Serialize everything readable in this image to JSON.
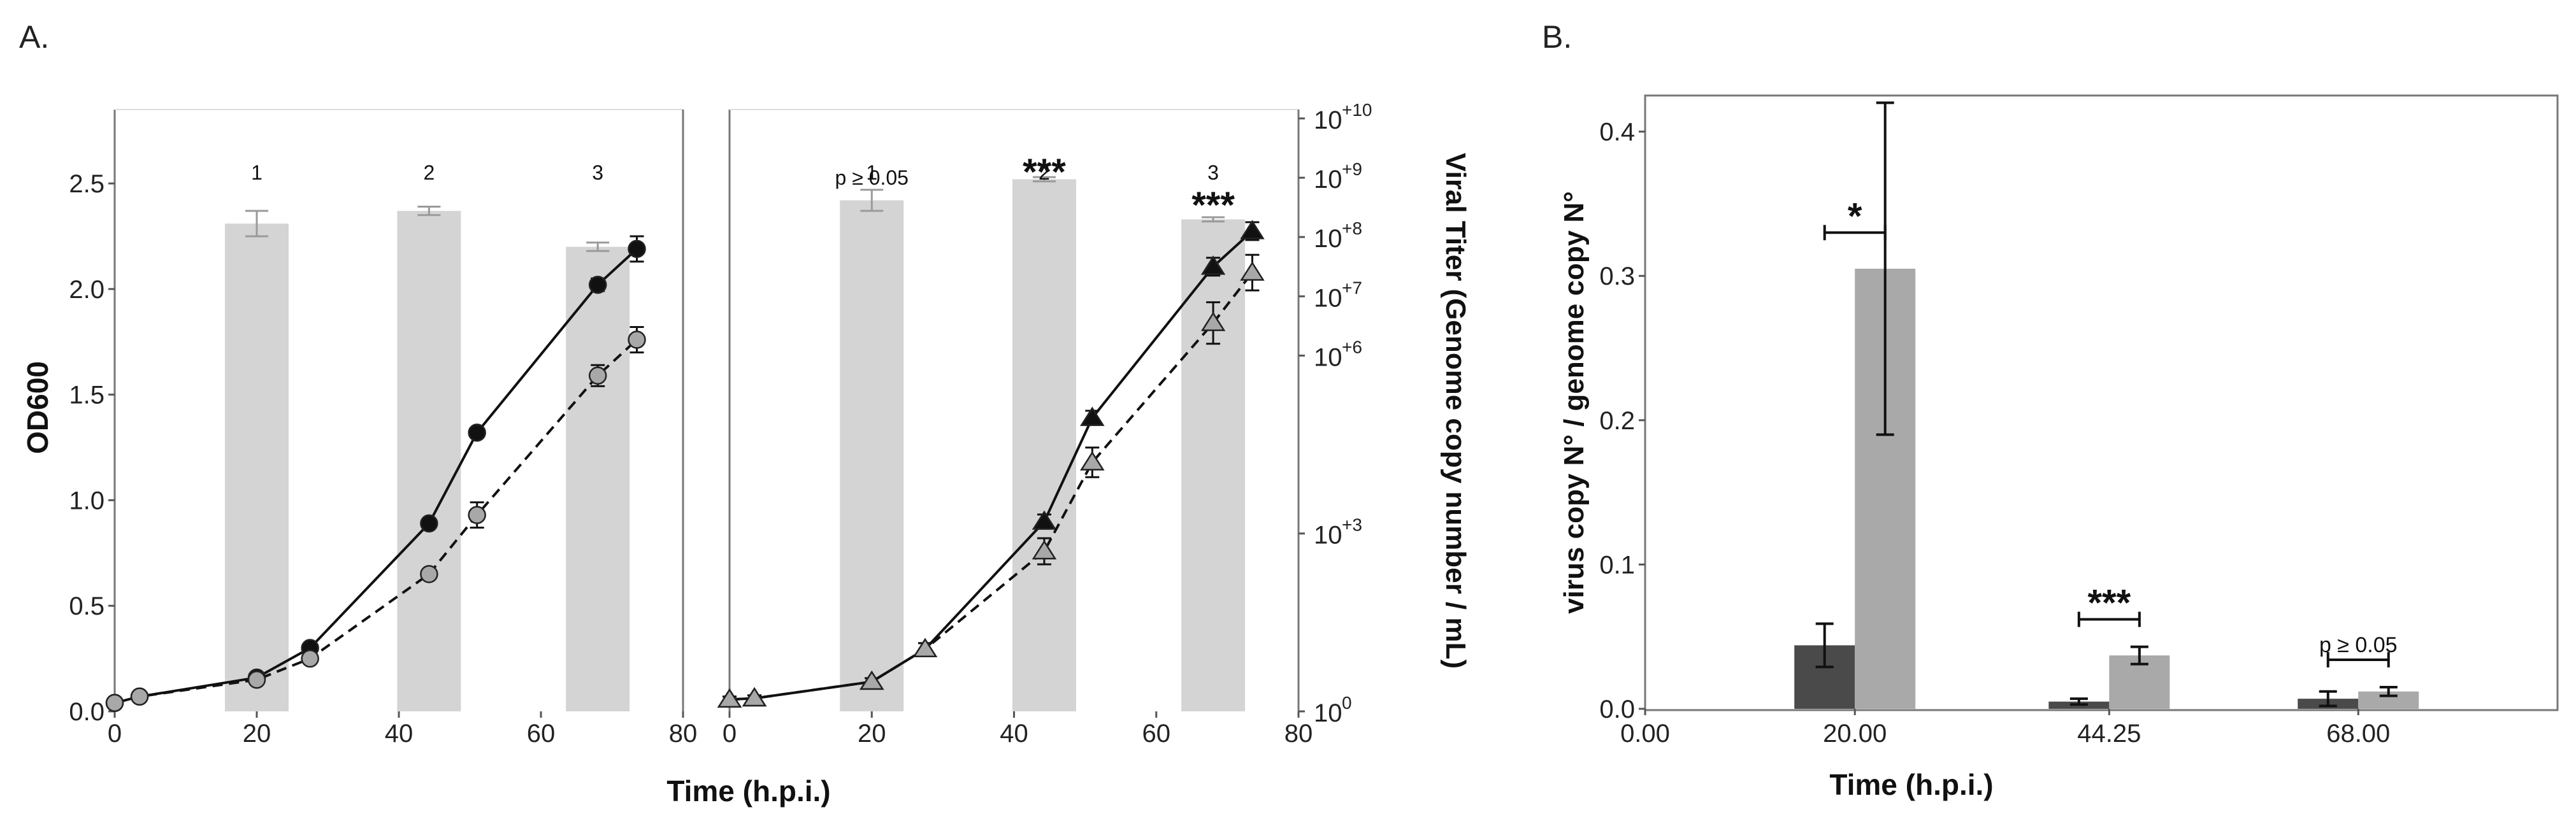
{
  "panels": {
    "a_label": "A.",
    "b_label": "B."
  },
  "colors": {
    "bar": "#d4d4d4",
    "bar_err": "#9a9a9a",
    "black": "#111111",
    "gray_marker": "#a8a8a8",
    "dark_bar": "#4a4a4a",
    "light_bar": "#a9a9a9"
  },
  "chart_data": [
    {
      "id": "A-left",
      "type": "line",
      "title": "",
      "xlabel": "Time (h.p.i.)",
      "ylabel": "OD600",
      "xlim": [
        0,
        80
      ],
      "ylim": [
        0,
        2.85
      ],
      "xticks": [
        "0",
        "20",
        "40",
        "60",
        "80"
      ],
      "yticks": [
        "0.0",
        "0.5",
        "1.0",
        "1.5",
        "2.0",
        "2.5"
      ],
      "bars": {
        "x": [
          20,
          44.25,
          68
        ],
        "values": [
          2.31,
          2.37,
          2.2
        ],
        "err": [
          0.06,
          0.02,
          0.02
        ],
        "labels": [
          "1",
          "2",
          "3"
        ],
        "sig": [
          "",
          "",
          ""
        ]
      },
      "series": [
        {
          "name": "solid",
          "marker": "circle",
          "style": "solid",
          "x": [
            0,
            3.5,
            20,
            27.5,
            44.25,
            51,
            68,
            73.5
          ],
          "y": [
            0.04,
            0.07,
            0.16,
            0.3,
            0.89,
            1.32,
            2.02,
            2.19
          ],
          "err": [
            0.01,
            0.01,
            0.01,
            0.02,
            0.02,
            0.02,
            0.03,
            0.06
          ]
        },
        {
          "name": "dashed",
          "marker": "circle",
          "style": "dashed",
          "x": [
            0,
            3.5,
            20,
            27.5,
            44.25,
            51,
            68,
            73.5
          ],
          "y": [
            0.04,
            0.07,
            0.15,
            0.25,
            0.65,
            0.93,
            1.59,
            1.76
          ],
          "err": [
            0.01,
            0.01,
            0.01,
            0.02,
            0.02,
            0.06,
            0.05,
            0.06
          ]
        }
      ]
    },
    {
      "id": "A-right",
      "type": "line",
      "title": "",
      "xlabel": "",
      "ylabel": "Viral Titer (Genome copy number / mL)",
      "xlim": [
        0,
        80
      ],
      "yscale": "log",
      "ylim_log10": [
        0,
        10.15
      ],
      "xticks": [
        "0",
        "20",
        "40",
        "60",
        "80"
      ],
      "yticks": [
        {
          "base": "10",
          "exp": "+10",
          "log": 10
        },
        {
          "base": "10",
          "exp": "+9",
          "log": 9
        },
        {
          "base": "10",
          "exp": "+8",
          "log": 8
        },
        {
          "base": "10",
          "exp": "+7",
          "log": 7
        },
        {
          "base": "10",
          "exp": "+6",
          "log": 6
        },
        {
          "base": "10",
          "exp": "+3",
          "log": 3
        },
        {
          "base": "10",
          "exp": "0",
          "log": 0
        }
      ],
      "bars": {
        "x": [
          20,
          44.25,
          68
        ],
        "values": [
          2.42,
          2.52,
          2.33
        ],
        "err": [
          0.05,
          0.01,
          0.01
        ],
        "labels": [
          "1",
          "2",
          "3"
        ],
        "sig": [
          "p ≥ 0.05",
          "***",
          "***"
        ]
      },
      "series": [
        {
          "name": "solid",
          "marker": "triangle",
          "style": "solid",
          "x": [
            0,
            3.5,
            20,
            27.5,
            44.25,
            51,
            68,
            73.5
          ],
          "log10_y": [
            0.2,
            0.22,
            0.5,
            1.05,
            3.2,
            4.95,
            7.5,
            8.1
          ],
          "err_log": [
            0.05,
            0.05,
            0.06,
            0.1,
            0.12,
            0.12,
            0.15,
            0.15
          ]
        },
        {
          "name": "dashed",
          "marker": "triangle",
          "style": "dashed",
          "x": [
            0,
            3.5,
            20,
            27.5,
            44.25,
            51,
            68,
            73.5
          ],
          "log10_y": [
            0.2,
            0.22,
            0.5,
            1.05,
            2.7,
            4.2,
            6.55,
            7.4
          ],
          "err_log": [
            0.05,
            0.05,
            0.06,
            0.1,
            0.22,
            0.25,
            0.35,
            0.3
          ]
        }
      ]
    },
    {
      "id": "B",
      "type": "bar",
      "title": "",
      "xlabel": "Time (h.p.i.)",
      "ylabel": "virus copy N° / genome copy N°",
      "xlim": [
        0,
        87
      ],
      "ylim": [
        0,
        0.425
      ],
      "xticks": [
        {
          "x": 0,
          "label": "0.00"
        },
        {
          "x": 20,
          "label": "20.00"
        },
        {
          "x": 44.25,
          "label": "44.25"
        },
        {
          "x": 68,
          "label": "68.00"
        }
      ],
      "yticks": [
        "0.0",
        "0.1",
        "0.2",
        "0.3",
        "0.4"
      ],
      "groups": [
        {
          "x": 20,
          "dark": 0.044,
          "dark_err": 0.015,
          "light": 0.305,
          "light_err": 0.115,
          "sig": "*"
        },
        {
          "x": 44.25,
          "dark": 0.005,
          "dark_err": 0.002,
          "light": 0.037,
          "light_err": 0.006,
          "sig": "***"
        },
        {
          "x": 68,
          "dark": 0.007,
          "dark_err": 0.005,
          "light": 0.012,
          "light_err": 0.003,
          "sig": "p ≥ 0.05"
        }
      ]
    }
  ]
}
